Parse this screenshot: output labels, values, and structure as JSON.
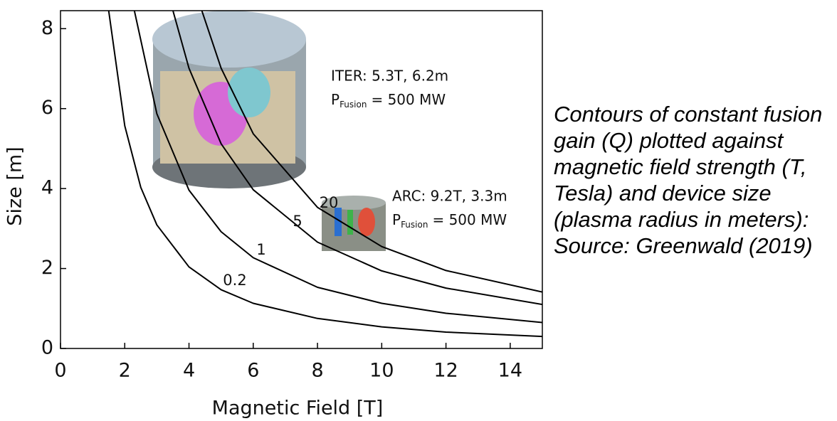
{
  "chart_data": {
    "type": "line",
    "xlabel": "Magnetic Field [T]",
    "ylabel": "Size [m]",
    "xlim": [
      0,
      15
    ],
    "ylim": [
      0,
      8.45
    ],
    "xticks": [
      0,
      2,
      4,
      6,
      8,
      10,
      12,
      14
    ],
    "yticks": [
      0,
      2,
      4,
      6,
      8
    ],
    "series": [
      {
        "name": "0.2",
        "color": "#000000",
        "x": [
          1.5,
          2,
          2.5,
          3,
          4,
          5,
          6,
          8,
          10,
          12,
          15
        ],
        "values": [
          8.45,
          5.57,
          4.03,
          3.09,
          2.04,
          1.47,
          1.13,
          0.75,
          0.54,
          0.41,
          0.3
        ]
      },
      {
        "name": "1",
        "color": "#000000",
        "x": [
          2.3,
          3,
          4,
          5,
          6,
          8,
          10,
          12,
          15
        ],
        "values": [
          8.45,
          5.87,
          3.96,
          2.92,
          2.27,
          1.53,
          1.13,
          0.88,
          0.65
        ]
      },
      {
        "name": "5",
        "color": "#000000",
        "x": [
          3.5,
          4,
          5,
          6,
          8,
          10,
          12,
          15
        ],
        "values": [
          8.45,
          7.01,
          5.12,
          3.97,
          2.66,
          1.94,
          1.51,
          1.1
        ]
      },
      {
        "name": "20",
        "color": "#000000",
        "x": [
          4.4,
          5,
          6,
          8,
          10,
          12,
          15
        ],
        "values": [
          8.45,
          7.01,
          5.37,
          3.53,
          2.55,
          1.95,
          1.41
        ]
      }
    ],
    "annotations": [
      {
        "line1": "ITER: 5.3T, 6.2m",
        "symbol": "P",
        "subscript": "Fusion",
        "rest": "= 500 MW"
      },
      {
        "line1": "ARC: 9.2T, 3.3m",
        "symbol": "P",
        "subscript": "Fusion",
        "rest": "= 500 MW"
      }
    ]
  },
  "caption": "Contours of constant fusion gain (Q) plotted against magnetic field strength (T, Tesla) and device size (plasma radius in meters): Source: Greenwald (2019)"
}
